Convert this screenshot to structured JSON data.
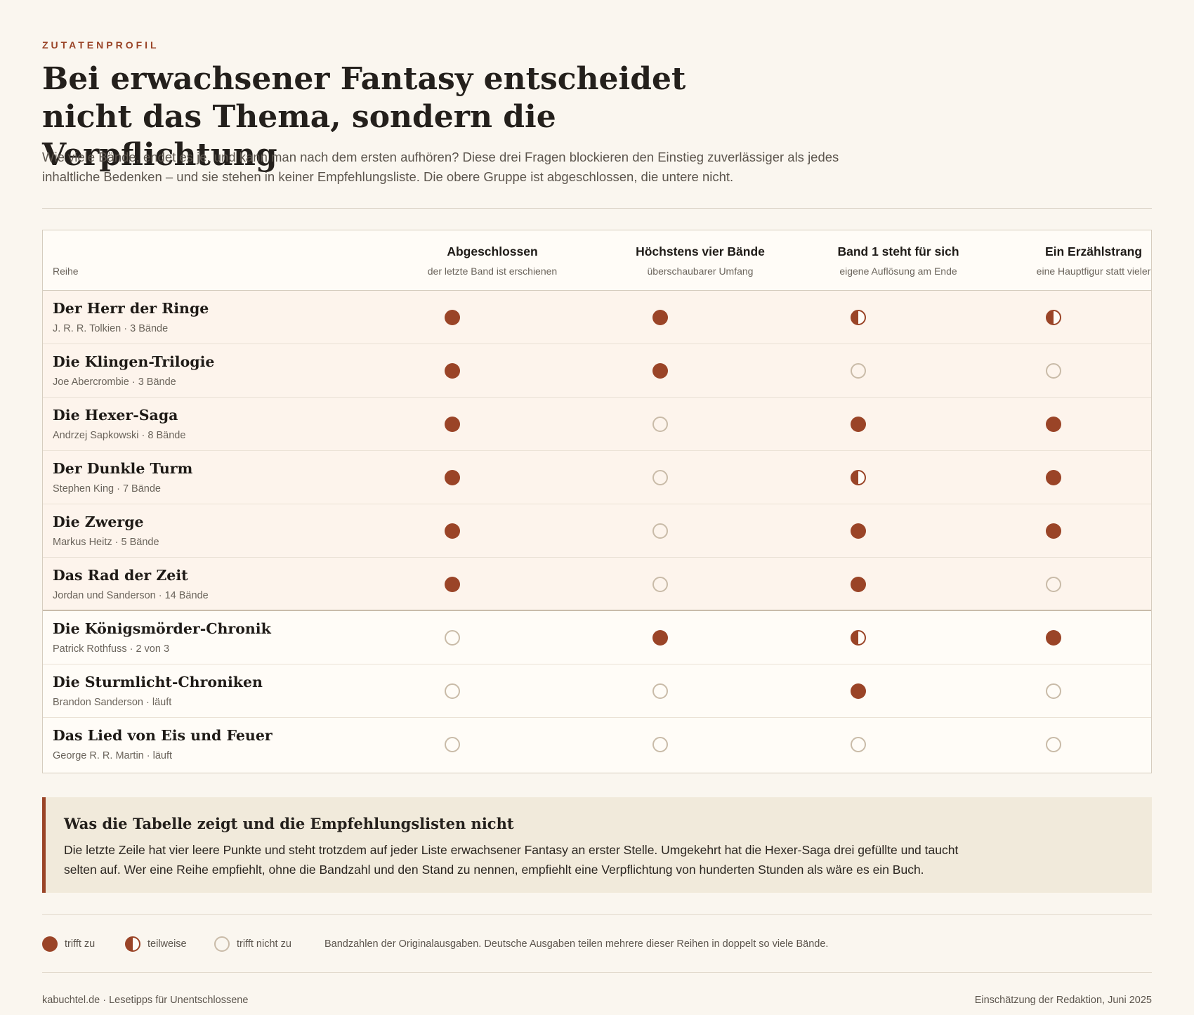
{
  "eyebrow": "ZUTATENPROFIL",
  "title": "Bei erwachsener Fantasy entscheidet nicht das Thema, sondern die Verpflichtung",
  "lede": "Wie viele Bände, endet es je, und kann man nach dem ersten aufhören? Diese drei Fragen blockieren den Einstieg zuverlässiger als jedes inhaltliche Bedenken – und sie stehen in keiner Empfehlungsliste. Die obere Gruppe ist abgeschlossen, die untere nicht.",
  "table": {
    "row_header": "Reihe",
    "columns": [
      {
        "title": "Abgeschlossen",
        "sub": "der letzte Band ist erschienen"
      },
      {
        "title": "Höchstens vier Bände",
        "sub": "überschaubarer Umfang"
      },
      {
        "title": "Band 1 steht für sich",
        "sub": "eigene Auflösung am Ende"
      },
      {
        "title": "Ein Erzählstrang",
        "sub": "eine Hauptfigur statt vieler"
      }
    ],
    "rows": [
      {
        "name": "Der Herr der Ringe",
        "meta": "J. R. R. Tolkien · 3 Bände",
        "group": "done",
        "marks": [
          "full",
          "full",
          "half",
          "half"
        ]
      },
      {
        "name": "Die Klingen-Trilogie",
        "meta": "Joe Abercrombie · 3 Bände",
        "group": "done",
        "marks": [
          "full",
          "full",
          "empty",
          "empty"
        ]
      },
      {
        "name": "Die Hexer-Saga",
        "meta": "Andrzej Sapkowski · 8 Bände",
        "group": "done",
        "marks": [
          "full",
          "empty",
          "full",
          "full"
        ]
      },
      {
        "name": "Der Dunkle Turm",
        "meta": "Stephen King · 7 Bände",
        "group": "done",
        "marks": [
          "full",
          "empty",
          "half",
          "full"
        ]
      },
      {
        "name": "Die Zwerge",
        "meta": "Markus Heitz · 5 Bände",
        "group": "done",
        "marks": [
          "full",
          "empty",
          "full",
          "full"
        ]
      },
      {
        "name": "Das Rad der Zeit",
        "meta": "Jordan und Sanderson · 14 Bände",
        "group": "done",
        "marks": [
          "full",
          "empty",
          "full",
          "empty"
        ]
      },
      {
        "name": "Die Königsmörder-Chronik",
        "meta": "Patrick Rothfuss · 2 von 3",
        "group": "open",
        "marks": [
          "empty",
          "full",
          "half",
          "full"
        ]
      },
      {
        "name": "Die Sturmlicht-Chroniken",
        "meta": "Brandon Sanderson · läuft",
        "group": "open",
        "marks": [
          "empty",
          "empty",
          "full",
          "empty"
        ]
      },
      {
        "name": "Das Lied von Eis und Feuer",
        "meta": "George R. R. Martin · läuft",
        "group": "open",
        "marks": [
          "empty",
          "empty",
          "empty",
          "empty"
        ]
      }
    ]
  },
  "callout": {
    "title": "Was die Tabelle zeigt und die Empfehlungslisten nicht",
    "text": "Die letzte Zeile hat vier leere Punkte und steht trotzdem auf jeder Liste erwachsener Fantasy an erster Stelle. Umgekehrt hat die Hexer-Saga drei gefüllte und taucht selten auf. Wer eine Reihe empfiehlt, ohne die Bandzahl und den Stand zu nennen, empfiehlt eine Verpflichtung von hunderten Stunden als wäre es ein Buch."
  },
  "legend": {
    "full": "trifft zu",
    "half": "teilweise",
    "empty": "trifft nicht zu",
    "note": "Bandzahlen der Originalausgaben. Deutsche Ausgaben teilen mehrere dieser Reihen in doppelt so viele Bände."
  },
  "footer": {
    "left": "kabuchtel.de · Lesetipps für Unentschlossene",
    "right": "Einschätzung der Redaktion, Juni 2025"
  },
  "colors": {
    "accent": "#9a4427",
    "background": "#faf6ef",
    "callout_bg": "#f1eadb"
  }
}
